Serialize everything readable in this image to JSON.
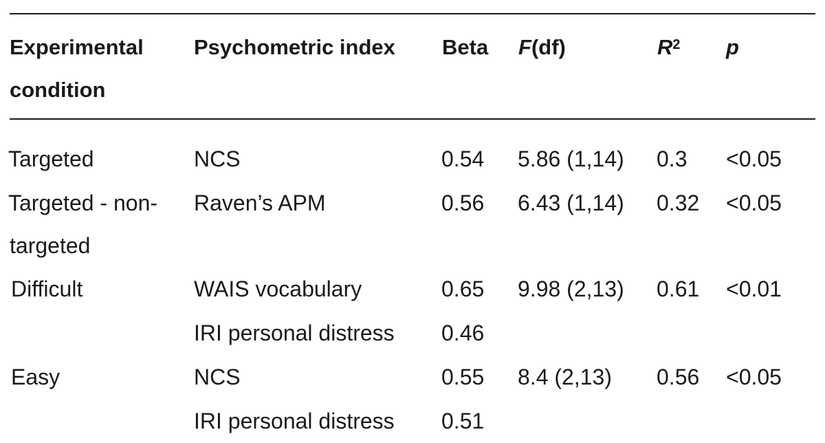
{
  "table": {
    "headers": {
      "condition_line1": "Experimental",
      "condition_line2": "condition",
      "psychometric_index": "Psychometric index",
      "beta": "Beta",
      "f_symbol": "F",
      "f_suffix": "(df)",
      "r2_symbol": "R",
      "r2_exponent": "2",
      "p": "p"
    },
    "rows": [
      {
        "condition": "Targeted",
        "condition_cont": "",
        "index": "NCS",
        "beta": "0.54",
        "f": "5.86 (1,14)",
        "r2": "0.3",
        "p": "<0.05"
      },
      {
        "condition": "Targeted - non-",
        "condition_cont": "targeted",
        "index": "Raven’s APM",
        "beta": "0.56",
        "f": "6.43 (1,14)",
        "r2": "0.32",
        "p": "<0.05"
      },
      {
        "condition": "Difficult",
        "condition_cont": "",
        "index": "WAIS vocabulary",
        "beta": "0.65",
        "f": "9.98 (2,13)",
        "r2": "0.61",
        "p": "<0.01"
      },
      {
        "condition": "",
        "condition_cont": "",
        "index": "IRI personal distress",
        "beta": "0.46",
        "f": "",
        "r2": "",
        "p": ""
      },
      {
        "condition": "Easy",
        "condition_cont": "",
        "index": "NCS",
        "beta": "0.55",
        "f": "8.4 (2,13)",
        "r2": "0.56",
        "p": "<0.05"
      },
      {
        "condition": "",
        "condition_cont": "",
        "index": "IRI personal distress",
        "beta": "0.51",
        "f": "",
        "r2": "",
        "p": ""
      }
    ]
  }
}
